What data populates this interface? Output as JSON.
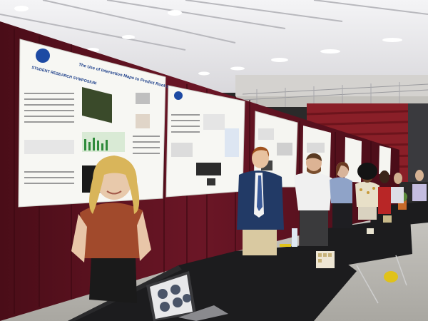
{
  "posters": {
    "poster1": {
      "logo": "STUDENT RESEARCH SYMPOSIUM",
      "title": "The Use of Interaction Maps to Predict Root Growth"
    }
  },
  "colors": {
    "curtain": "#5a1220",
    "ceiling": "#e9e9ec",
    "table": "#1c1c1e",
    "floor": "#b9b7b2",
    "bleacher": "#8a1f28"
  }
}
